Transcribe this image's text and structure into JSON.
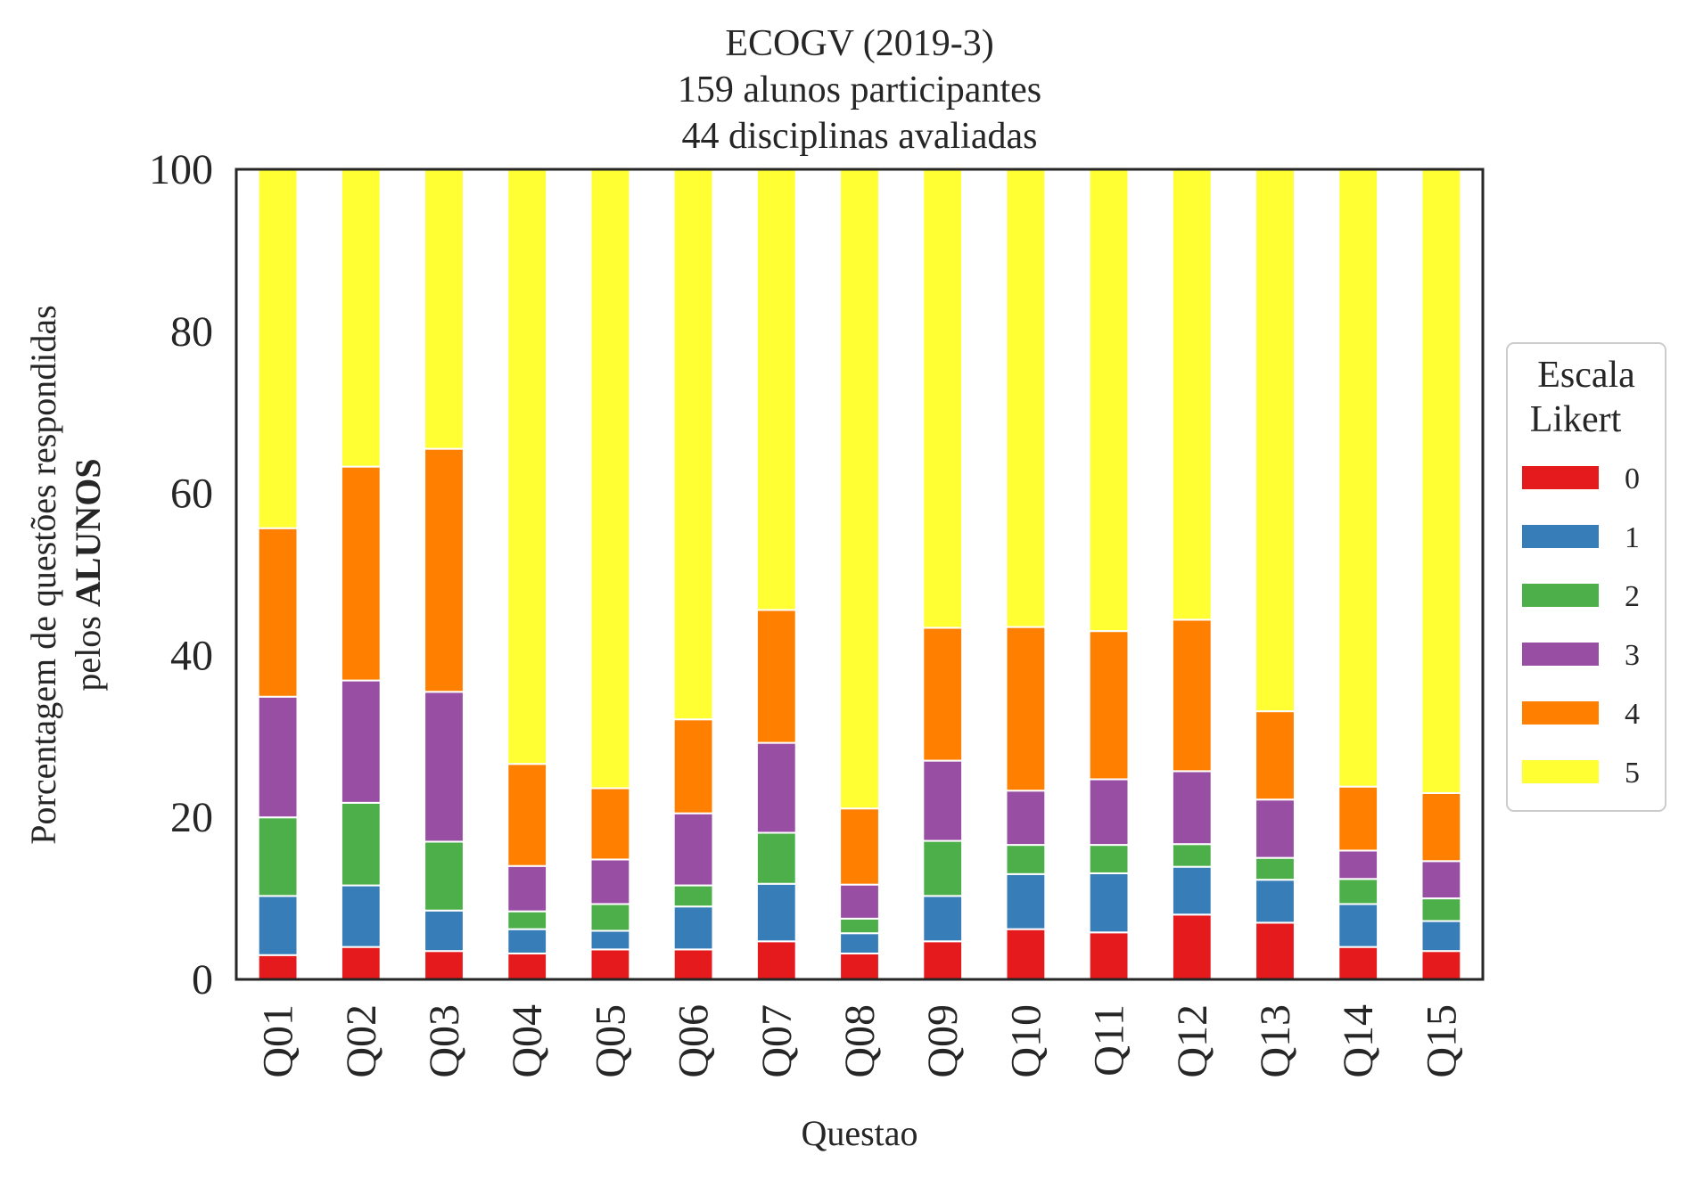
{
  "chart_data": {
    "type": "bar",
    "stacked": true,
    "title_lines": [
      "ECOGV (2019-3)",
      "159 alunos participantes",
      "44 disciplinas avaliadas"
    ],
    "xlabel": "Questao",
    "ylabel_line1": "Porcentagem de questões respondidas",
    "ylabel_line2_prefix": "pelos ",
    "ylabel_line2_bold": "ALUNOS",
    "ylim": [
      0,
      100
    ],
    "yticks": [
      "0",
      "20",
      "40",
      "60",
      "80",
      "100"
    ],
    "grid": false,
    "categories": [
      "Q01",
      "Q02",
      "Q03",
      "Q04",
      "Q05",
      "Q06",
      "Q07",
      "Q08",
      "Q09",
      "Q10",
      "Q11",
      "Q12",
      "Q13",
      "Q14",
      "Q15"
    ],
    "legend": {
      "title_lines": [
        "Escala",
        "Likert"
      ],
      "placement": "right"
    },
    "series": [
      {
        "name": "0",
        "color": "#e41a1c",
        "values": [
          3.0,
          4.0,
          3.5,
          3.2,
          3.7,
          3.7,
          4.7,
          3.2,
          4.7,
          6.2,
          5.8,
          8.0,
          7.0,
          4.0,
          3.5
        ]
      },
      {
        "name": "1",
        "color": "#377eb8",
        "values": [
          7.3,
          7.6,
          5.0,
          3.0,
          2.3,
          5.3,
          7.1,
          2.5,
          5.6,
          6.8,
          7.3,
          5.9,
          5.3,
          5.3,
          3.7
        ]
      },
      {
        "name": "2",
        "color": "#4daf4a",
        "values": [
          9.7,
          10.2,
          8.5,
          2.2,
          3.3,
          2.6,
          6.3,
          1.8,
          6.8,
          3.6,
          3.5,
          2.8,
          2.7,
          3.1,
          2.8
        ]
      },
      {
        "name": "3",
        "color": "#984ea3",
        "values": [
          14.9,
          15.1,
          18.5,
          5.6,
          5.5,
          8.9,
          11.1,
          4.2,
          9.9,
          6.7,
          8.1,
          9.0,
          7.2,
          3.5,
          4.6
        ]
      },
      {
        "name": "4",
        "color": "#ff7f00",
        "values": [
          20.8,
          26.4,
          30.0,
          12.6,
          8.8,
          11.6,
          16.4,
          9.4,
          16.4,
          20.2,
          18.3,
          18.7,
          10.9,
          7.9,
          8.4
        ]
      },
      {
        "name": "5",
        "color": "#ffff33",
        "values": [
          44.3,
          36.7,
          34.5,
          73.4,
          76.4,
          67.9,
          54.4,
          78.9,
          56.6,
          56.5,
          57.0,
          55.6,
          66.9,
          76.2,
          77.0
        ]
      }
    ]
  }
}
